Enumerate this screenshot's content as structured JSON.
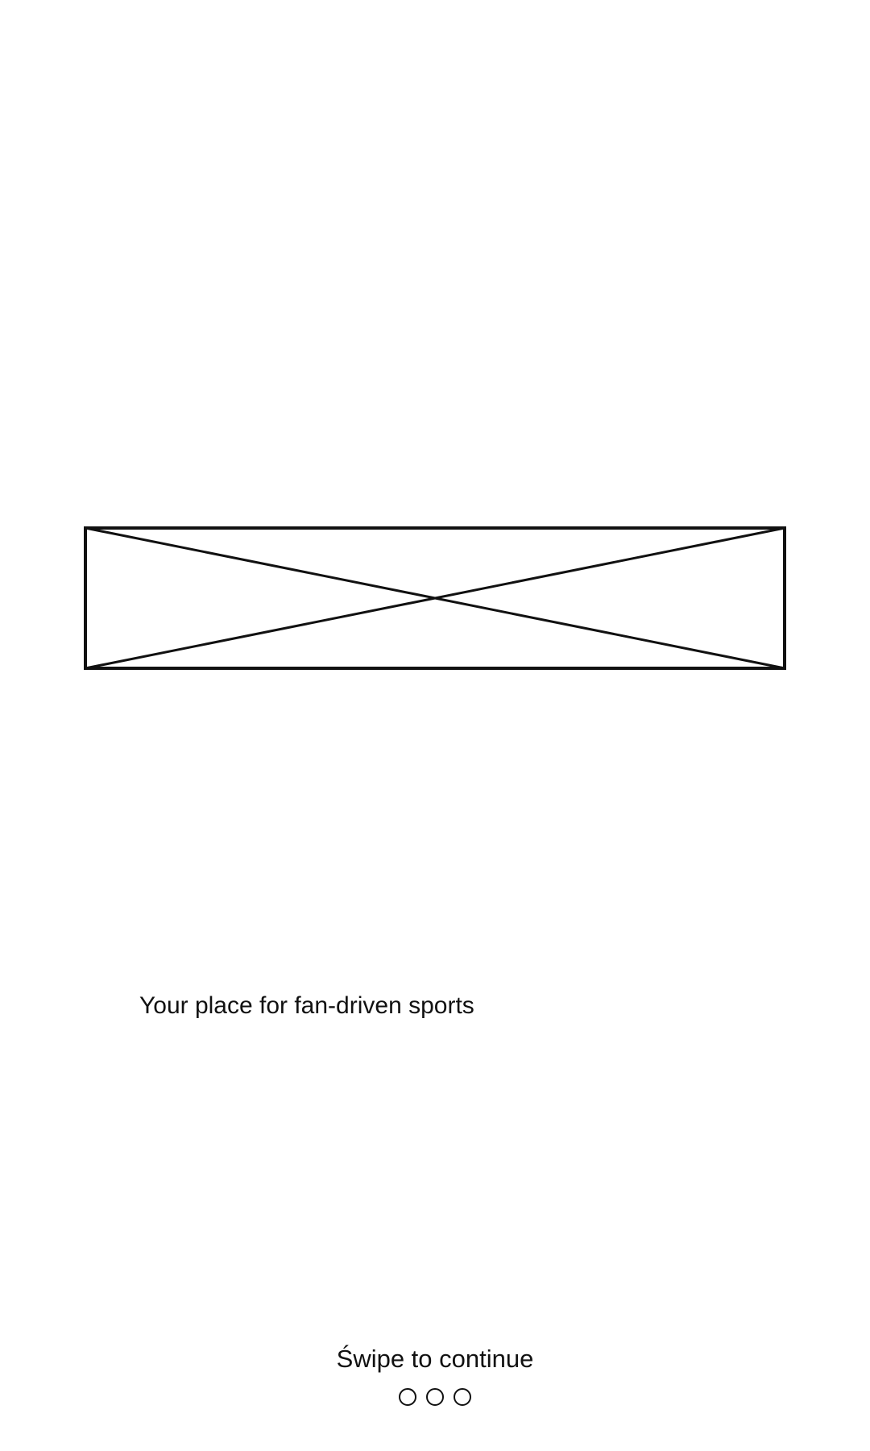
{
  "onboarding": {
    "tagline": "Your place for fan-driven sports",
    "swipe_hint": "Świpe to continue",
    "page_indicator": {
      "total": 3
    },
    "image_placeholder_icon": "image-placeholder-icon"
  },
  "colors": {
    "background": "#ffffff",
    "foreground": "#111111"
  }
}
